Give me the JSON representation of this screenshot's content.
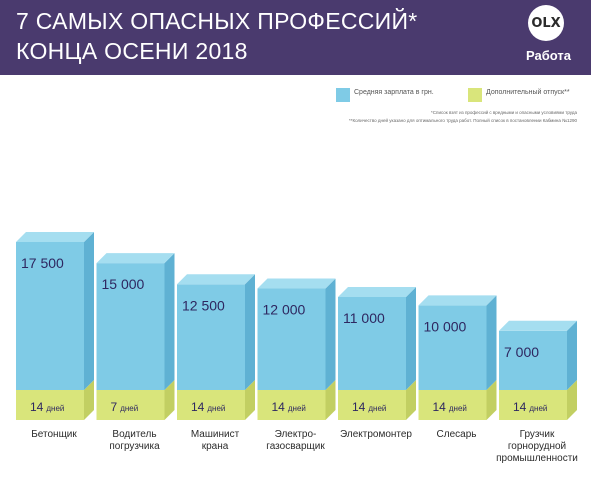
{
  "header": {
    "title_line1": "7 САМЫХ ОПАСНЫХ ПРОФЕССИЙ*",
    "title_line2": "КОНЦА ОСЕНИ 2018",
    "logo_mark": "OLX",
    "logo_text": "Работа"
  },
  "colors": {
    "header_bg": "#4a3a6e",
    "salary": "#7fcbe6",
    "vacation": "#d9e57b",
    "label_text": "#2e2760"
  },
  "footnotes": [
    "*Список взят из профессий с вредными и опасными условиями труда",
    "**Количество дней указано для оптимального труда работ. Полный список в постановлении Кабмина №1290"
  ],
  "chart_data": {
    "type": "bar",
    "title": "7 САМЫХ ОПАСНЫХ ПРОФЕССИЙ* КОНЦА ОСЕНИ 2018",
    "legend": [
      {
        "name": "Средняя зарплата в грн.",
        "color": "#7fcbe6"
      },
      {
        "name": "Дополнительный отпуск**",
        "color": "#d9e57b"
      }
    ],
    "legend_position": "top-right",
    "categories": [
      [
        "Бетонщик"
      ],
      [
        "Водитель",
        "погрузчика"
      ],
      [
        "Машинист",
        "крана"
      ],
      [
        "Электро-",
        "газосварщик"
      ],
      [
        "Электромонтер"
      ],
      [
        "Слесарь"
      ],
      [
        "Грузчик",
        "горнорудной",
        "промышленности"
      ]
    ],
    "series": [
      {
        "name": "Средняя зарплата в грн.",
        "values": [
          17500,
          15000,
          12500,
          12000,
          11000,
          10000,
          7000
        ],
        "labels": [
          "17 500",
          "15 000",
          "12 500",
          "12 000",
          "11 000",
          "10 000",
          "7 000"
        ]
      },
      {
        "name": "Дополнительный отпуск**",
        "values": [
          14,
          7,
          14,
          14,
          14,
          14,
          14
        ],
        "unit": "дней"
      }
    ]
  }
}
